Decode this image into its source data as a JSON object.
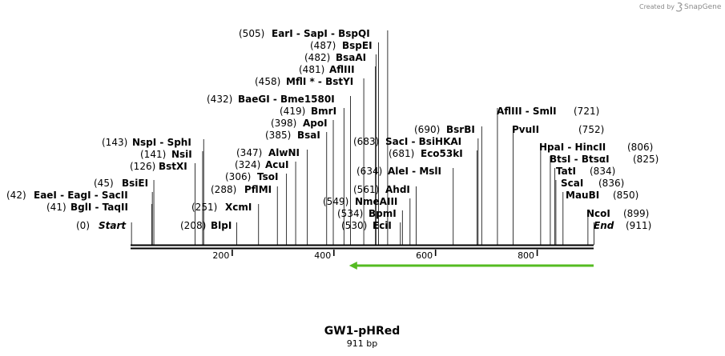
{
  "credit": {
    "prefix": "Created by",
    "brand": "SnapGene"
  },
  "map": {
    "title": "GW1-pHRed",
    "length_label": "911 bp",
    "length_bp": 911,
    "ruler_ticks": [
      {
        "pos": 200,
        "label": "200"
      },
      {
        "pos": 400,
        "label": "400"
      },
      {
        "pos": 600,
        "label": "600"
      },
      {
        "pos": 800,
        "label": "800"
      }
    ],
    "feature": {
      "type": "arrow",
      "direction": "reverse",
      "start": 430,
      "end": 911,
      "color": "#55bb22"
    },
    "sites": [
      {
        "pos": "(0)",
        "name": "Start",
        "italic": true,
        "cut": 1
      },
      {
        "pos": "(41)",
        "name": "BglI  - TaqII",
        "cut": 41
      },
      {
        "pos": "(42)",
        "name": "EaeI  - EagI  - SacII",
        "cut": 42
      },
      {
        "pos": "(45)",
        "name": "BsiEI",
        "cut": 45
      },
      {
        "pos": "(126)",
        "name": "BstXI",
        "cut": 126
      },
      {
        "pos": "(141)",
        "name": "NsiI",
        "cut": 141
      },
      {
        "pos": "(143)",
        "name": "NspI  - SphI",
        "cut": 143
      },
      {
        "pos": "(208)",
        "name": "BlpI",
        "cut": 208
      },
      {
        "pos": "(251)",
        "name": "XcmI",
        "cut": 251
      },
      {
        "pos": "(288)",
        "name": "PflMI",
        "cut": 288
      },
      {
        "pos": "(306)",
        "name": "TsoI",
        "cut": 306
      },
      {
        "pos": "(324)",
        "name": "AcuI",
        "cut": 324
      },
      {
        "pos": "(347)",
        "name": "AlwNI",
        "cut": 347
      },
      {
        "pos": "(385)",
        "name": "BsaI",
        "cut": 385
      },
      {
        "pos": "(398)",
        "name": "ApoI",
        "cut": 398
      },
      {
        "pos": "(419)",
        "name": "BmrI",
        "cut": 419
      },
      {
        "pos": "(432)",
        "name": "BaeGI  - Bme1580I",
        "cut": 432
      },
      {
        "pos": "(458)",
        "name": "MflI *  - BstYI",
        "cut": 458
      },
      {
        "pos": "(481)",
        "name": "AflIII",
        "cut": 481
      },
      {
        "pos": "(482)",
        "name": "BsaAI",
        "cut": 482
      },
      {
        "pos": "(487)",
        "name": "BspEI",
        "cut": 487
      },
      {
        "pos": "(505)",
        "name": "EarI  - SapI  - BspQI",
        "cut": 505
      },
      {
        "pos": "(530)",
        "name": "EciI",
        "cut": 530
      },
      {
        "pos": "(534)",
        "name": "BpmI",
        "cut": 534
      },
      {
        "pos": "(549)",
        "name": "NmeAIII",
        "cut": 549
      },
      {
        "pos": "(561)",
        "name": "AhdI",
        "cut": 561
      },
      {
        "pos": "(634)",
        "name": "AleI  - MslI",
        "cut": 634
      },
      {
        "pos": "(681)",
        "name": "Eco53kI",
        "cut": 681
      },
      {
        "pos": "(683)",
        "name": "SacI  - BsiHKAI",
        "cut": 683
      },
      {
        "pos": "(690)",
        "name": "BsrBI",
        "cut": 690
      },
      {
        "pos": "(721)",
        "name": "AflIII  - SmlI",
        "cut": 721
      },
      {
        "pos": "(752)",
        "name": "PvuII",
        "cut": 752
      },
      {
        "pos": "(806)",
        "name": "HpaI  - HincII",
        "cut": 806
      },
      {
        "pos": "(825)",
        "name": "BtsI  - BtsαI",
        "cut": 825
      },
      {
        "pos": "(834)",
        "name": "TatI",
        "cut": 834
      },
      {
        "pos": "(836)",
        "name": "ScaI",
        "cut": 836
      },
      {
        "pos": "(850)",
        "name": "MauBI",
        "cut": 850
      },
      {
        "pos": "(899)",
        "name": "NcoI",
        "cut": 899
      },
      {
        "pos": "(911)",
        "name": "End",
        "italic": true,
        "cut": 911
      }
    ]
  }
}
